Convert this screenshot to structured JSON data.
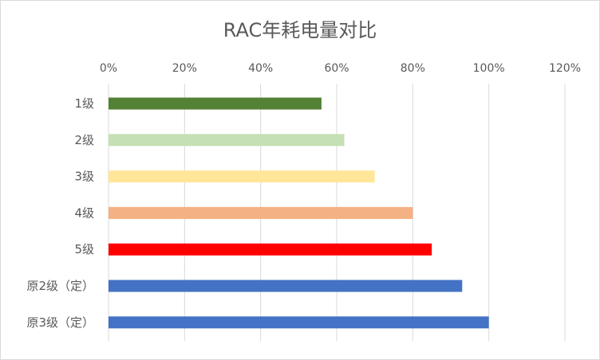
{
  "chart_data": {
    "type": "bar",
    "orientation": "horizontal",
    "title": "RAC年耗电量对比",
    "categories": [
      "1级",
      "2级",
      "3级",
      "4级",
      "5级",
      "原2级（定）",
      "原3级（定）"
    ],
    "values": [
      0.56,
      0.62,
      0.7,
      0.8,
      0.85,
      0.93,
      1.0
    ],
    "colors": [
      "#548235",
      "#C5E0B4",
      "#FFE699",
      "#F4B183",
      "#FF0000",
      "#4472C4",
      "#4472C4"
    ],
    "xlim": [
      0,
      1.2
    ],
    "xticks": [
      "0%",
      "20%",
      "40%",
      "60%",
      "80%",
      "100%",
      "120%"
    ],
    "xaxis_position": "top",
    "grid": true,
    "legend": "none"
  }
}
